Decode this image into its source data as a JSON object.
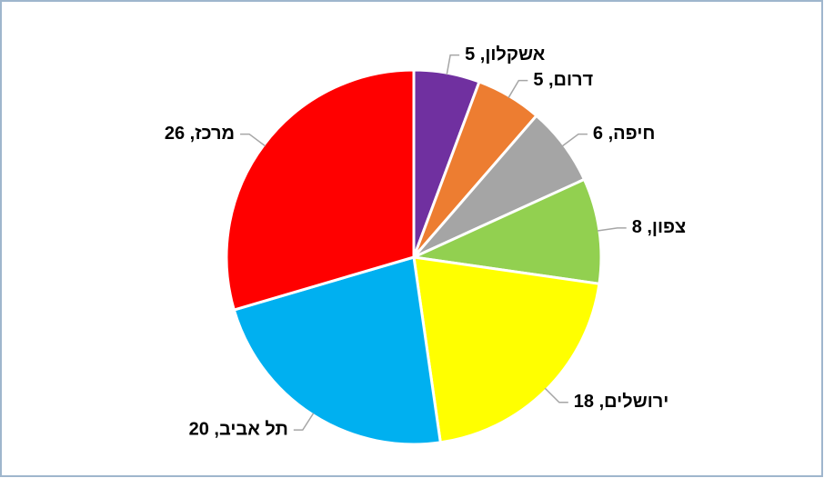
{
  "chart_data": {
    "type": "pie",
    "labels": [
      "אשקלון, 5",
      "דרום, 5",
      "חיפה, 6",
      "צפון, 8",
      "ירושלים, 18",
      "תל אביב, 20",
      "מרכז, 26"
    ],
    "values": [
      5,
      5,
      6,
      8,
      18,
      20,
      26
    ],
    "colors": [
      "#7030a0",
      "#ed7d31",
      "#a5a5a5",
      "#92d050",
      "#ffff00",
      "#00b0f0",
      "#ff0000"
    ]
  }
}
